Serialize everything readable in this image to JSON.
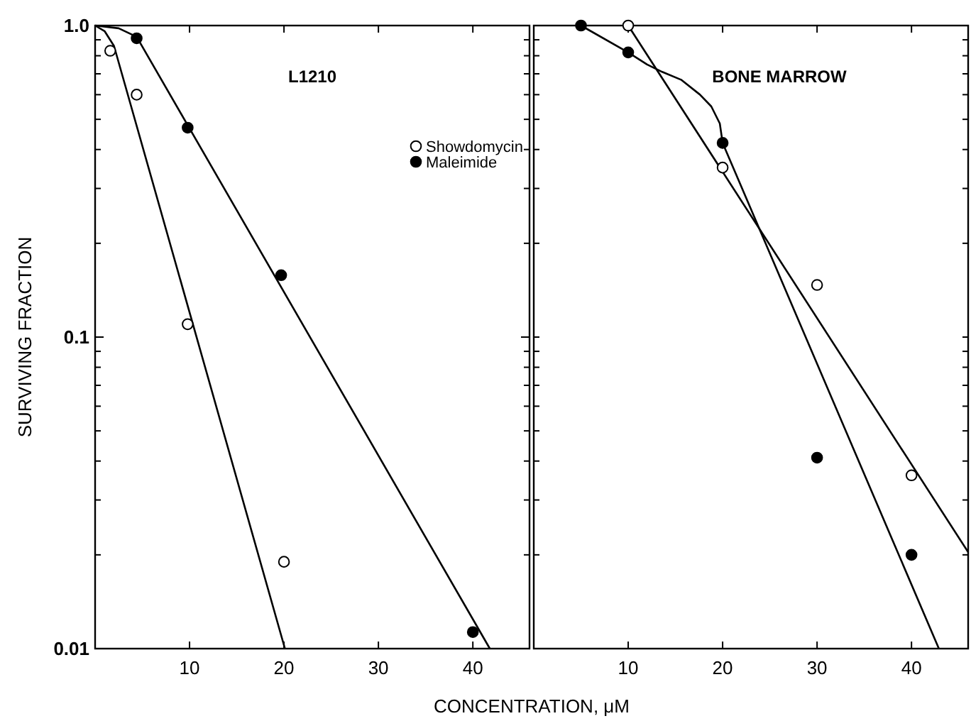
{
  "chart_data": [
    {
      "type": "scatter",
      "title": "L1210",
      "ylabel": "SURVIVING FRACTION",
      "xlabel": "CONCENTRATION, μM",
      "log": "y",
      "xlim": [
        0,
        46
      ],
      "xticks": [
        10,
        20,
        30,
        40
      ],
      "ylim": [
        0.01,
        1
      ],
      "yticks": [
        {
          "value": 0.01,
          "label": "0.01"
        },
        {
          "value": 0.02,
          "label": null
        },
        {
          "value": 0.03,
          "label": null
        },
        {
          "value": 0.04,
          "label": null
        },
        {
          "value": 0.05,
          "label": null
        },
        {
          "value": 0.06,
          "label": null
        },
        {
          "value": 0.07,
          "label": null
        },
        {
          "value": 0.08,
          "label": null
        },
        {
          "value": 0.09,
          "label": null
        },
        {
          "value": 0.1,
          "label": "0.1"
        },
        {
          "value": 0.2,
          "label": null
        },
        {
          "value": 0.3,
          "label": null
        },
        {
          "value": 0.4,
          "label": null
        },
        {
          "value": 0.5,
          "label": null
        },
        {
          "value": 0.6,
          "label": null
        },
        {
          "value": 0.7,
          "label": null
        },
        {
          "value": 0.8,
          "label": null
        },
        {
          "value": 0.9,
          "label": null
        },
        {
          "value": 1,
          "label": "1.0"
        }
      ],
      "grid": false,
      "legend": "top right",
      "marker": "circle",
      "series": [
        {
          "name": "Showdomycin",
          "color": "#ffffff",
          "x": [
            1.6,
            4.4,
            9.8,
            20
          ],
          "values": [
            0.83,
            0.6,
            0.11,
            0.019
          ]
        },
        {
          "name": "Maleimide",
          "color": "#000000",
          "x": [
            4.4,
            9.8,
            19.7,
            40
          ],
          "values": [
            0.91,
            0.47,
            0.158,
            0.0113
          ]
        },
        {
          "type": "line",
          "marker": "none",
          "color": "#000000",
          "x": [
            0,
            1,
            2,
            20.1
          ],
          "values": [
            1,
            0.96,
            0.86,
            0.01
          ]
        },
        {
          "type": "line",
          "marker": "none",
          "color": "#000000",
          "x": [
            0,
            2.5,
            4.4,
            41.8
          ],
          "values": [
            1,
            0.98,
            0.92,
            0.01
          ]
        }
      ]
    },
    {
      "type": "scatter",
      "title": "BONE MARROW",
      "log": "y",
      "xlim": [
        0,
        46
      ],
      "xticks": [
        10,
        20,
        30,
        40
      ],
      "ylim": [
        0.01,
        1
      ],
      "yticks": [
        {
          "value": 0.01,
          "label": null
        },
        {
          "value": 0.02,
          "label": null
        },
        {
          "value": 0.03,
          "label": null
        },
        {
          "value": 0.04,
          "label": null
        },
        {
          "value": 0.05,
          "label": null
        },
        {
          "value": 0.06,
          "label": null
        },
        {
          "value": 0.07,
          "label": null
        },
        {
          "value": 0.08,
          "label": null
        },
        {
          "value": 0.09,
          "label": null
        },
        {
          "value": 0.1,
          "label": null
        },
        {
          "value": 0.2,
          "label": null
        },
        {
          "value": 0.3,
          "label": null
        },
        {
          "value": 0.4,
          "label": null
        },
        {
          "value": 0.5,
          "label": null
        },
        {
          "value": 0.6,
          "label": null
        },
        {
          "value": 0.7,
          "label": null
        },
        {
          "value": 0.8,
          "label": null
        },
        {
          "value": 0.9,
          "label": null
        },
        {
          "value": 1,
          "label": null
        }
      ],
      "tick_labels": "x",
      "grid": false,
      "marker": "circle",
      "series": [
        {
          "color": "#ffffff",
          "x": [
            10,
            20,
            30,
            40
          ],
          "values": [
            1,
            0.35,
            0.147,
            0.036
          ]
        },
        {
          "color": "#000000",
          "x": [
            5,
            10,
            20,
            30,
            40
          ],
          "values": [
            1,
            0.82,
            0.42,
            0.041,
            0.02
          ]
        },
        {
          "type": "line",
          "marker": "none",
          "color": "#000000",
          "x": [
            10,
            46
          ],
          "values": [
            1,
            0.0204
          ]
        },
        {
          "type": "line",
          "marker": "none",
          "color": "#000000",
          "x": [
            5,
            10,
            12,
            13.6,
            15.6,
            17.6,
            18.8,
            19.7,
            20,
            42.9
          ],
          "values": [
            1,
            0.82,
            0.75,
            0.71,
            0.67,
            0.6,
            0.55,
            0.485,
            0.42,
            0.01
          ]
        }
      ]
    }
  ]
}
